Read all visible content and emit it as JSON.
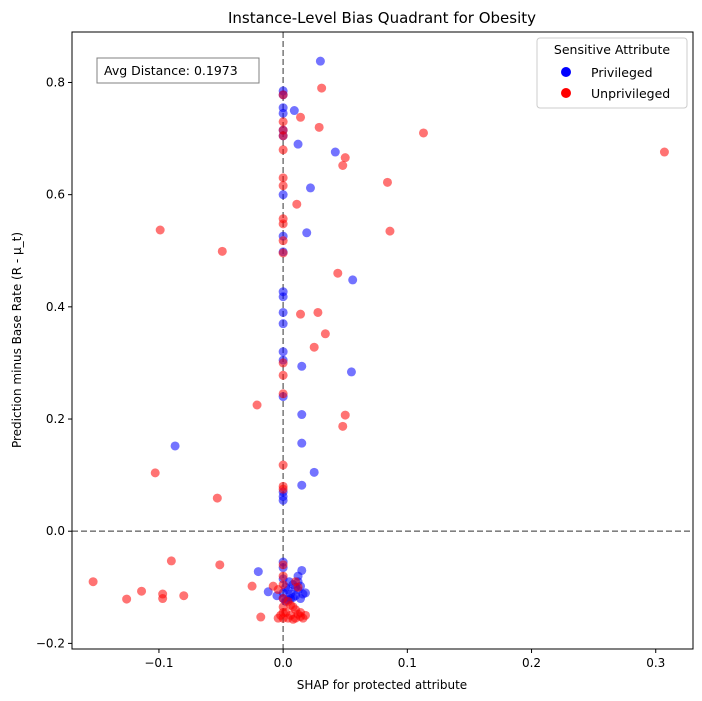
{
  "chart_data": {
    "type": "scatter",
    "title": "Instance-Level Bias Quadrant for Obesity",
    "xlabel": "SHAP for protected attribute",
    "ylabel": "Prediction minus Base Rate (R - μ_t)",
    "xlim": [
      -0.17,
      0.33
    ],
    "ylim": [
      -0.21,
      0.89
    ],
    "xticks": [
      -0.1,
      0.0,
      0.1,
      0.2,
      0.3
    ],
    "xtick_labels": [
      "−0.1",
      "0.0",
      "0.1",
      "0.2",
      "0.3"
    ],
    "yticks": [
      -0.2,
      0.0,
      0.2,
      0.4,
      0.6,
      0.8
    ],
    "ytick_labels": [
      "−0.2",
      "0.0",
      "0.2",
      "0.4",
      "0.6",
      "0.8"
    ],
    "reference_lines": {
      "x": 0.0,
      "y": 0.0,
      "style": "dashed",
      "color": "#808080"
    },
    "annotation": "Avg Distance: 0.1973",
    "legend": {
      "title": "Sensitive Attribute",
      "position": "top-right",
      "entries": [
        {
          "label": "Privileged",
          "color": "#0000ff"
        },
        {
          "label": "Unprivileged",
          "color": "#ff0000"
        }
      ]
    },
    "series": [
      {
        "name": "Privileged",
        "color": "#0000ff",
        "points": [
          [
            0.03,
            0.838
          ],
          [
            0.0,
            0.785
          ],
          [
            0.0,
            0.778
          ],
          [
            0.0,
            0.755
          ],
          [
            0.009,
            0.75
          ],
          [
            0.0,
            0.745
          ],
          [
            0.0,
            0.715
          ],
          [
            0.0,
            0.705
          ],
          [
            0.012,
            0.69
          ],
          [
            0.042,
            0.676
          ],
          [
            0.022,
            0.612
          ],
          [
            0.0,
            0.6
          ],
          [
            0.019,
            0.532
          ],
          [
            0.0,
            0.526
          ],
          [
            0.0,
            0.498
          ],
          [
            0.056,
            0.448
          ],
          [
            0.0,
            0.427
          ],
          [
            0.0,
            0.418
          ],
          [
            0.0,
            0.39
          ],
          [
            0.0,
            0.37
          ],
          [
            0.0,
            0.32
          ],
          [
            0.0,
            0.305
          ],
          [
            0.015,
            0.294
          ],
          [
            0.055,
            0.284
          ],
          [
            0.0,
            0.24
          ],
          [
            0.015,
            0.208
          ],
          [
            0.015,
            0.157
          ],
          [
            -0.087,
            0.152
          ],
          [
            0.025,
            0.105
          ],
          [
            0.015,
            0.082
          ],
          [
            0.0,
            0.07
          ],
          [
            0.0,
            0.062
          ],
          [
            0.0,
            0.055
          ],
          [
            0.0,
            -0.055
          ],
          [
            0.0,
            -0.065
          ],
          [
            -0.02,
            -0.072
          ],
          [
            0.015,
            -0.07
          ],
          [
            0.0,
            -0.085
          ],
          [
            0.012,
            -0.08
          ],
          [
            0.005,
            -0.09
          ],
          [
            0.018,
            -0.11
          ],
          [
            -0.012,
            -0.108
          ],
          [
            -0.005,
            -0.115
          ],
          [
            0.002,
            -0.1
          ],
          [
            0.004,
            -0.105
          ],
          [
            0.006,
            -0.112
          ],
          [
            0.008,
            -0.118
          ],
          [
            0.01,
            -0.115
          ],
          [
            0.012,
            -0.105
          ],
          [
            0.014,
            -0.12
          ],
          [
            0.016,
            -0.112
          ],
          [
            0.01,
            -0.1
          ],
          [
            0.004,
            -0.122
          ],
          [
            0.008,
            -0.095
          ],
          [
            0.012,
            -0.09
          ],
          [
            0.0,
            -0.11
          ],
          [
            0.0,
            -0.12
          ],
          [
            0.006,
            -0.12
          ],
          [
            0.014,
            -0.098
          ],
          [
            0.002,
            -0.125
          ]
        ]
      },
      {
        "name": "Unprivileged",
        "color": "#ff0000",
        "points": [
          [
            0.031,
            0.79
          ],
          [
            0.0,
            0.778
          ],
          [
            0.014,
            0.738
          ],
          [
            0.0,
            0.73
          ],
          [
            0.0,
            0.715
          ],
          [
            0.029,
            0.72
          ],
          [
            0.113,
            0.71
          ],
          [
            0.0,
            0.705
          ],
          [
            0.307,
            0.676
          ],
          [
            0.0,
            0.68
          ],
          [
            0.05,
            0.666
          ],
          [
            0.048,
            0.652
          ],
          [
            0.0,
            0.63
          ],
          [
            0.084,
            0.622
          ],
          [
            0.0,
            0.616
          ],
          [
            0.011,
            0.583
          ],
          [
            0.0,
            0.557
          ],
          [
            0.0,
            0.548
          ],
          [
            -0.099,
            0.537
          ],
          [
            0.086,
            0.535
          ],
          [
            0.0,
            0.518
          ],
          [
            -0.049,
            0.499
          ],
          [
            0.0,
            0.496
          ],
          [
            0.044,
            0.46
          ],
          [
            0.028,
            0.39
          ],
          [
            0.014,
            0.387
          ],
          [
            0.034,
            0.352
          ],
          [
            0.025,
            0.328
          ],
          [
            0.0,
            0.3
          ],
          [
            0.0,
            0.278
          ],
          [
            0.0,
            0.245
          ],
          [
            -0.021,
            0.225
          ],
          [
            0.05,
            0.207
          ],
          [
            0.048,
            0.187
          ],
          [
            0.0,
            0.118
          ],
          [
            -0.103,
            0.104
          ],
          [
            0.0,
            0.08
          ],
          [
            0.0,
            0.075
          ],
          [
            -0.053,
            0.059
          ],
          [
            -0.09,
            -0.053
          ],
          [
            -0.051,
            -0.06
          ],
          [
            -0.153,
            -0.09
          ],
          [
            -0.025,
            -0.098
          ],
          [
            -0.114,
            -0.107
          ],
          [
            -0.097,
            -0.112
          ],
          [
            -0.08,
            -0.115
          ],
          [
            -0.097,
            -0.12
          ],
          [
            -0.126,
            -0.121
          ],
          [
            -0.018,
            -0.153
          ],
          [
            -0.008,
            -0.098
          ],
          [
            -0.004,
            -0.104
          ],
          [
            0.0,
            -0.06
          ],
          [
            0.0,
            -0.08
          ],
          [
            0.0,
            -0.095
          ],
          [
            0.0,
            -0.12
          ],
          [
            0.0,
            -0.135
          ],
          [
            0.0,
            -0.145
          ],
          [
            0.0,
            -0.155
          ],
          [
            0.01,
            -0.09
          ],
          [
            0.012,
            -0.1
          ],
          [
            0.004,
            -0.125
          ],
          [
            0.008,
            -0.135
          ],
          [
            0.006,
            -0.15
          ],
          [
            0.01,
            -0.155
          ],
          [
            0.012,
            -0.148
          ],
          [
            0.014,
            -0.152
          ],
          [
            0.016,
            -0.155
          ],
          [
            0.018,
            -0.15
          ],
          [
            0.002,
            -0.145
          ],
          [
            0.004,
            -0.155
          ],
          [
            -0.002,
            -0.15
          ],
          [
            -0.004,
            -0.155
          ],
          [
            0.008,
            -0.157
          ],
          [
            0.014,
            -0.145
          ],
          [
            0.01,
            -0.14
          ],
          [
            0.006,
            -0.132
          ]
        ]
      }
    ]
  }
}
